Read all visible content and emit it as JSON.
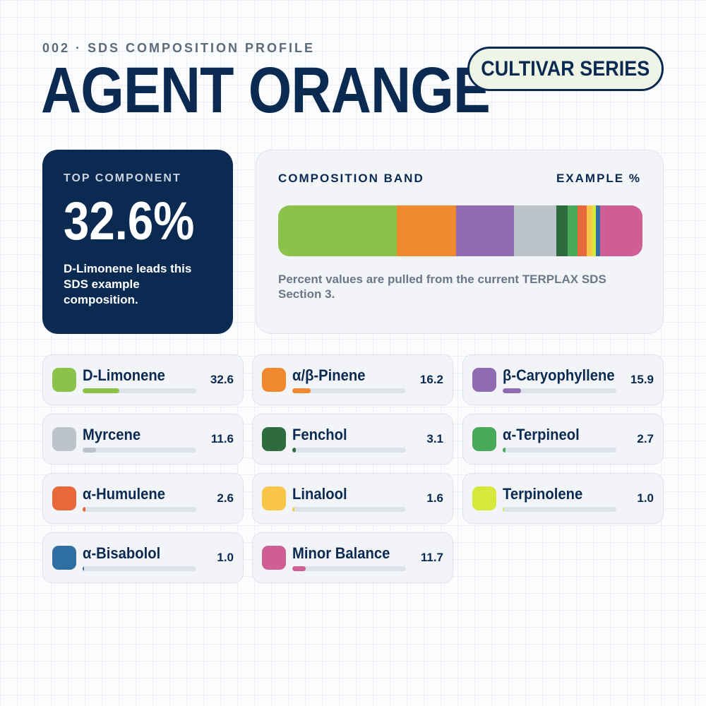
{
  "header": {
    "kicker": "002 · SDS COMPOSITION PROFILE",
    "title": "AGENT ORANGE",
    "series_label": "CULTIVAR SERIES"
  },
  "top_component": {
    "label": "TOP COMPONENT",
    "value": "32.6%",
    "description": "D-Limonene leads this SDS example composition."
  },
  "band": {
    "heading": "COMPOSITION BAND",
    "heading_right": "EXAMPLE %",
    "note": "Percent values are pulled from the current TERPLAX SDS Section 3."
  },
  "chart_data": {
    "type": "bar",
    "categories": [
      "D-Limonene",
      "α/β-Pinene",
      "β-Caryophyllene",
      "Myrcene",
      "Fenchol",
      "α-Terpineol",
      "α-Humulene",
      "Linalool",
      "Terpinolene",
      "α-Bisabolol",
      "Minor Balance"
    ],
    "values": [
      32.6,
      16.2,
      15.9,
      11.6,
      3.1,
      2.7,
      2.6,
      1.6,
      1.0,
      1.0,
      11.7
    ],
    "value_labels": [
      "32.6",
      "16.2",
      "15.9",
      "11.6",
      "3.1",
      "2.7",
      "2.6",
      "1.6",
      "1.0",
      "1.0",
      "11.7"
    ],
    "colors": [
      "#8bc34a",
      "#f0892d",
      "#8e6bb2",
      "#bcc3cb",
      "#2e6b3f",
      "#48a95a",
      "#e8683a",
      "#f9c64a",
      "#d6e83b",
      "#2f6fa3",
      "#cf5e94"
    ],
    "ylim": [
      0,
      100
    ]
  }
}
